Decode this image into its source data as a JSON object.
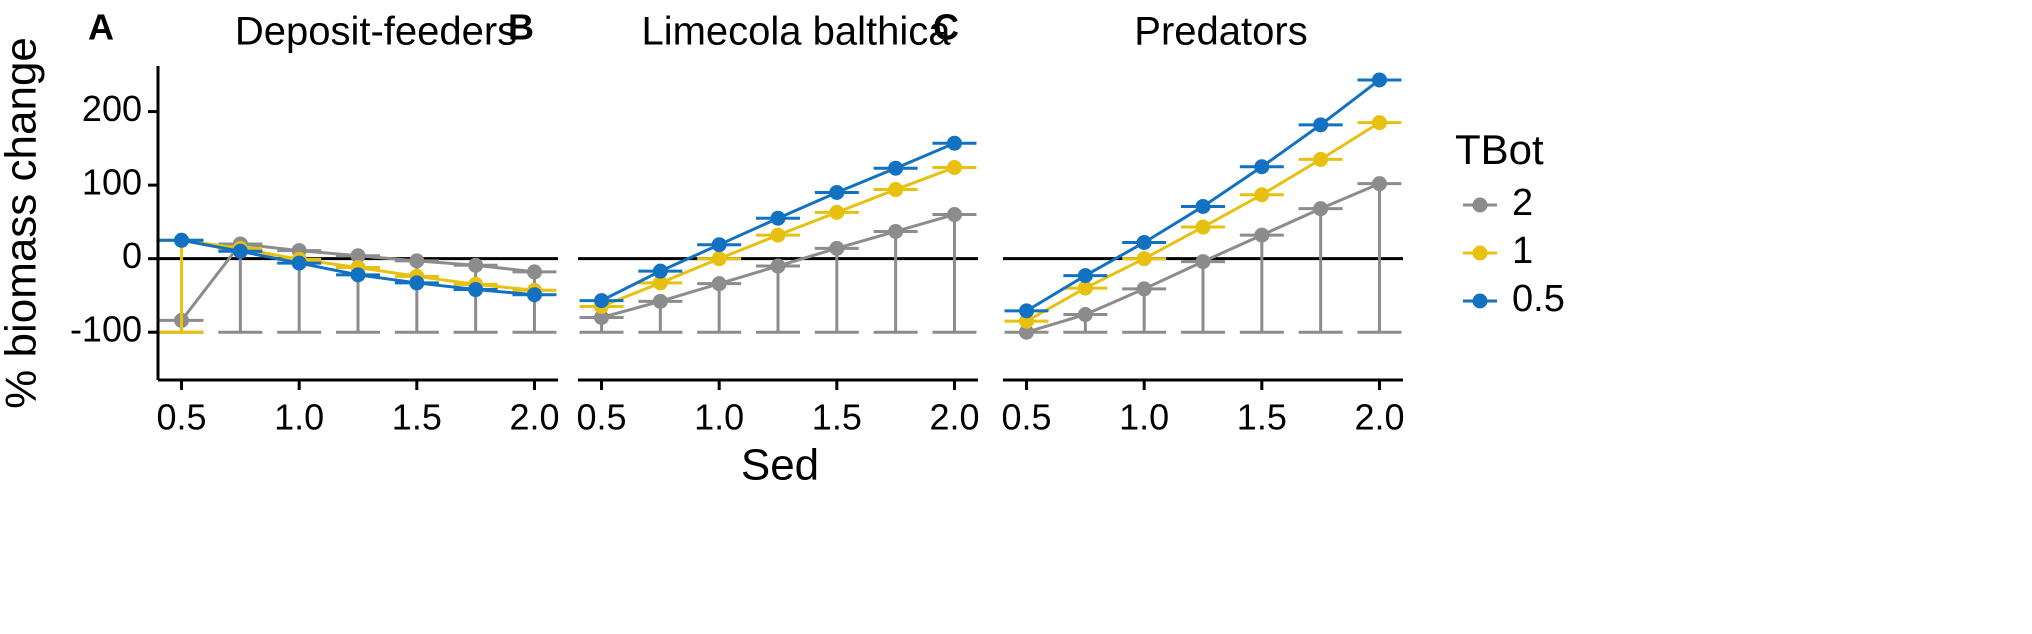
{
  "chart_data": {
    "type": "line",
    "xlabel": "Sed",
    "ylabel": "% biomass change",
    "x": [
      0.5,
      0.75,
      1.0,
      1.25,
      1.5,
      1.75,
      2.0
    ],
    "xticks": [
      0.5,
      1.0,
      1.5,
      2.0
    ],
    "xtick_labels": [
      "0.5",
      "1.0",
      "1.5",
      "2.0"
    ],
    "xlim": [
      0.4,
      2.1
    ],
    "yticks": [
      -100,
      0,
      100,
      200
    ],
    "ytick_labels": [
      "-100",
      "0",
      "100",
      "200"
    ],
    "ylim": [
      -165,
      262
    ],
    "reference_line_y": 0,
    "legend": {
      "title": "TBot",
      "placement": "right",
      "entries": [
        {
          "name": "2",
          "color": "#8c8c8c"
        },
        {
          "name": "1",
          "color": "#e8c00f"
        },
        {
          "name": "0.5",
          "color": "#1272c1"
        }
      ]
    },
    "panels": [
      {
        "letter": "A",
        "title": "Deposit-feeders",
        "series": [
          {
            "name": "2",
            "color": "#8c8c8c",
            "values": [
              -84,
              20,
              11,
              4,
              -3,
              -9,
              -18
            ],
            "lower": [
              -100,
              -100,
              -100,
              -100,
              -100,
              -100,
              -100
            ],
            "upper": [
              -84,
              20,
              11,
              4,
              -3,
              -9,
              -18
            ]
          },
          {
            "name": "1",
            "color": "#e8c00f",
            "values": [
              25,
              14,
              -1,
              -12,
              -24,
              -35,
              -43
            ],
            "lower": [
              -100,
              14,
              -1,
              -12,
              -24,
              -35,
              -43
            ],
            "upper": [
              25,
              14,
              -1,
              -12,
              -24,
              -35,
              -43
            ]
          },
          {
            "name": "0.5",
            "color": "#1272c1",
            "values": [
              25,
              10,
              -6,
              -22,
              -33,
              -42,
              -49
            ],
            "lower": [
              25,
              10,
              -6,
              -22,
              -33,
              -42,
              -49
            ],
            "upper": [
              25,
              10,
              -6,
              -22,
              -33,
              -42,
              -49
            ]
          }
        ]
      },
      {
        "letter": "B",
        "title": "Limecola balthica",
        "series": [
          {
            "name": "2",
            "color": "#8c8c8c",
            "values": [
              -80,
              -58,
              -34,
              -10,
              14,
              37,
              60
            ],
            "lower": [
              -100,
              -100,
              -100,
              -100,
              -100,
              -100,
              -100
            ],
            "upper": [
              -80,
              -58,
              -34,
              -10,
              14,
              37,
              60
            ]
          },
          {
            "name": "1",
            "color": "#e8c00f",
            "values": [
              -65,
              -33,
              0,
              32,
              63,
              94,
              124
            ],
            "lower": [
              -65,
              -33,
              0,
              32,
              63,
              94,
              124
            ],
            "upper": [
              -65,
              -33,
              0,
              32,
              63,
              94,
              124
            ]
          },
          {
            "name": "0.5",
            "color": "#1272c1",
            "values": [
              -57,
              -17,
              19,
              55,
              90,
              123,
              157
            ],
            "lower": [
              -57,
              -17,
              19,
              55,
              90,
              123,
              157
            ],
            "upper": [
              -57,
              -17,
              19,
              55,
              90,
              123,
              157
            ]
          }
        ]
      },
      {
        "letter": "C",
        "title": "Predators",
        "series": [
          {
            "name": "2",
            "color": "#8c8c8c",
            "values": [
              -100,
              -76,
              -41,
              -4,
              32,
              68,
              102
            ],
            "lower": [
              -100,
              -100,
              -100,
              -100,
              -100,
              -100,
              -100
            ],
            "upper": [
              -100,
              -76,
              -41,
              -4,
              32,
              68,
              102
            ]
          },
          {
            "name": "1",
            "color": "#e8c00f",
            "values": [
              -85,
              -40,
              0,
              43,
              87,
              135,
              185
            ],
            "lower": [
              -85,
              -40,
              0,
              43,
              87,
              135,
              185
            ],
            "upper": [
              -85,
              -40,
              0,
              43,
              87,
              135,
              185
            ]
          },
          {
            "name": "0.5",
            "color": "#1272c1",
            "values": [
              -71,
              -23,
              22,
              71,
              125,
              182,
              243
            ],
            "lower": [
              -71,
              -23,
              22,
              71,
              125,
              182,
              243
            ],
            "upper": [
              -71,
              -23,
              22,
              71,
              125,
              182,
              243
            ]
          }
        ]
      }
    ]
  }
}
